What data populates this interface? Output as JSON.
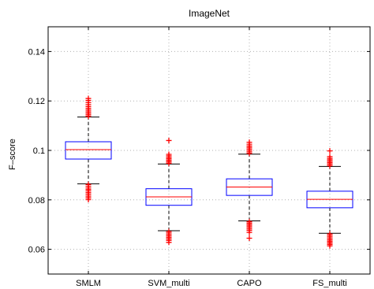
{
  "chart_data": {
    "type": "box",
    "title": "ImageNet",
    "xlabel": "",
    "ylabel": "F–score",
    "ylim": [
      0.05,
      0.15
    ],
    "yticks": [
      0.06,
      0.08,
      0.1,
      0.12,
      0.14
    ],
    "ytick_labels": [
      "0.06",
      "0.08",
      "0.1",
      "0.12",
      "0.14"
    ],
    "grid": true,
    "categories": [
      "SMLM",
      "SVM_multi",
      "CAPO",
      "FS_multi"
    ],
    "boxes": [
      {
        "category": "SMLM",
        "whisker_low": 0.0865,
        "q1": 0.0965,
        "median": 0.1003,
        "q3": 0.1035,
        "whisker_high": 0.1135,
        "outliers_low": [
          0.0862,
          0.0855,
          0.0848,
          0.0842,
          0.0836,
          0.0829,
          0.0822,
          0.0815,
          0.0808,
          0.0801
        ],
        "outliers_high": [
          0.1138,
          0.1144,
          0.115,
          0.1156,
          0.1163,
          0.117,
          0.1177,
          0.1185,
          0.1193,
          0.1202,
          0.121
        ]
      },
      {
        "category": "SVM_multi",
        "whisker_low": 0.0675,
        "q1": 0.0778,
        "median": 0.0812,
        "q3": 0.0845,
        "whisker_high": 0.0945,
        "outliers_low": [
          0.0672,
          0.0666,
          0.066,
          0.0654,
          0.0648,
          0.0642,
          0.0636,
          0.0628
        ],
        "outliers_high": [
          0.0948,
          0.0954,
          0.096,
          0.0966,
          0.0972,
          0.0978,
          0.0984,
          0.104
        ]
      },
      {
        "category": "CAPO",
        "whisker_low": 0.0715,
        "q1": 0.0818,
        "median": 0.0852,
        "q3": 0.0885,
        "whisker_high": 0.0985,
        "outliers_low": [
          0.0712,
          0.0706,
          0.07,
          0.0694,
          0.0688,
          0.0682,
          0.0676,
          0.0668,
          0.0645
        ],
        "outliers_high": [
          0.0988,
          0.0994,
          0.1,
          0.1006,
          0.1012,
          0.1018,
          0.1025,
          0.1033
        ]
      },
      {
        "category": "FS_multi",
        "whisker_low": 0.0665,
        "q1": 0.0768,
        "median": 0.0802,
        "q3": 0.0835,
        "whisker_high": 0.0935,
        "outliers_low": [
          0.0662,
          0.0656,
          0.065,
          0.0644,
          0.0638,
          0.0632,
          0.0626,
          0.062,
          0.0614
        ],
        "outliers_high": [
          0.0938,
          0.0944,
          0.095,
          0.0956,
          0.0962,
          0.0968,
          0.0975,
          0.0998
        ]
      }
    ],
    "colors": {
      "box": "#0000ff",
      "median": "#ff0000",
      "outlier": "#ff0000",
      "whisker": "#000000",
      "grid": "#b0b0b0",
      "axes": "#000000"
    }
  }
}
